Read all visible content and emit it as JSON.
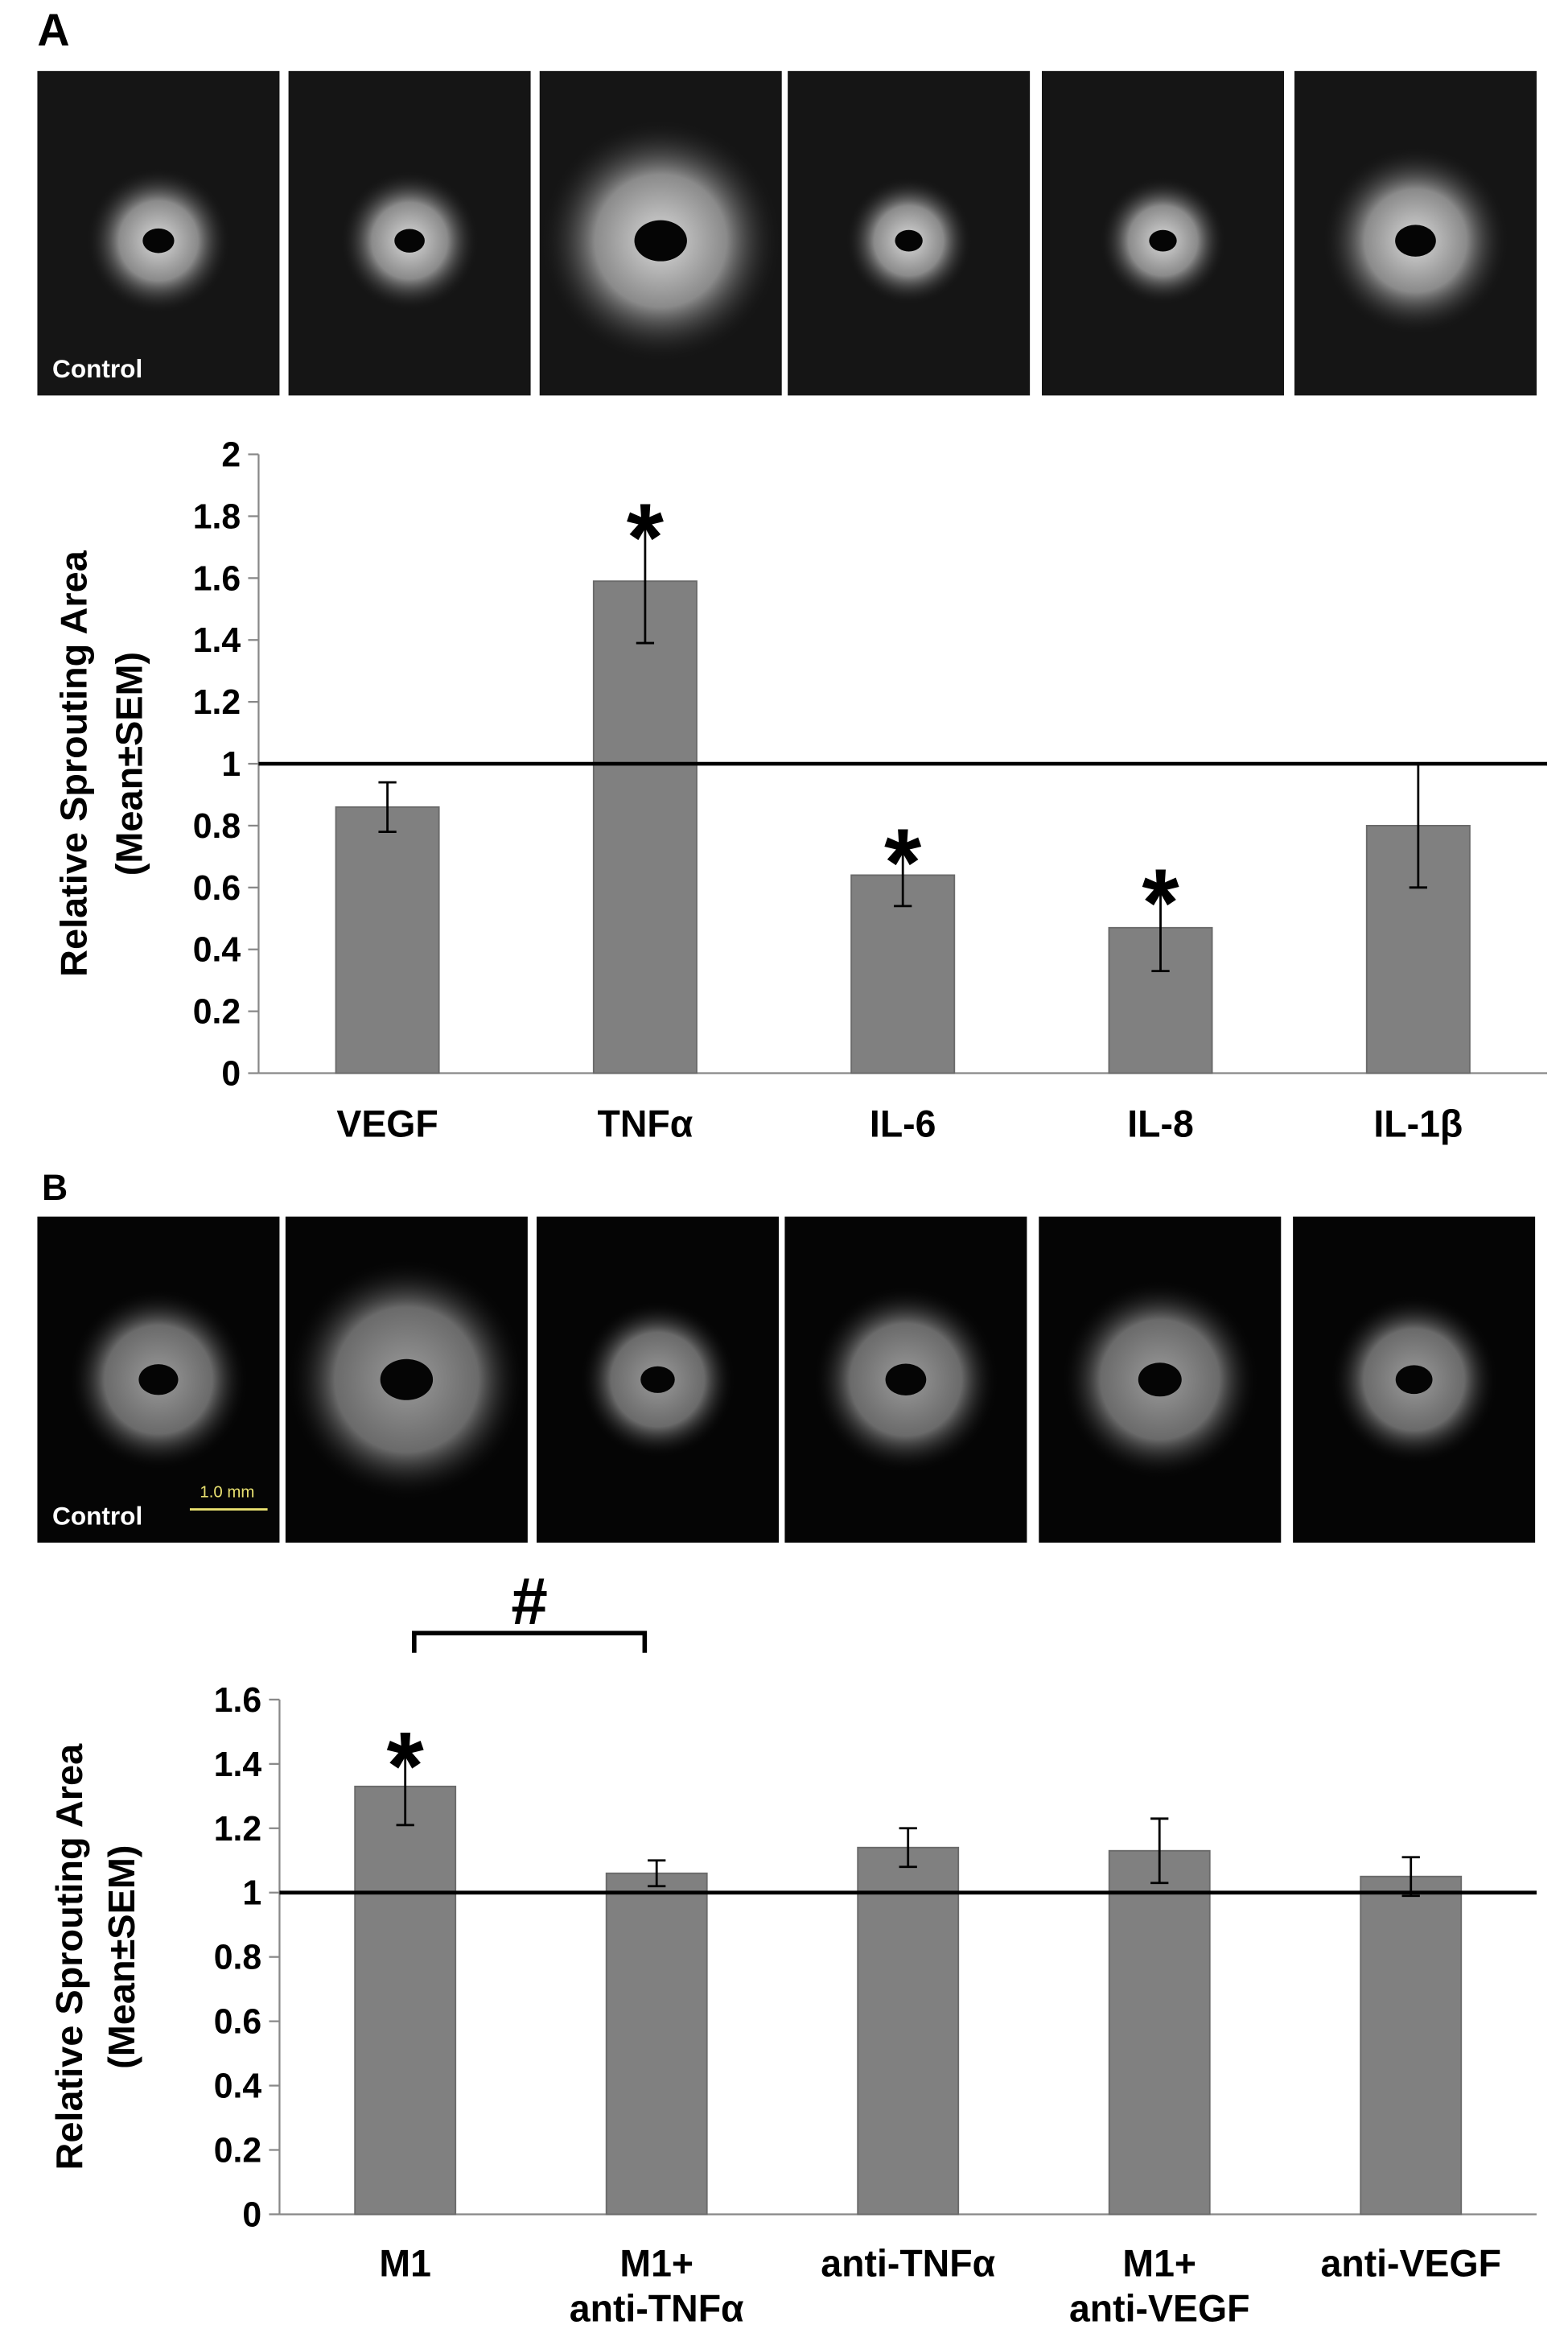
{
  "chart_data": [
    {
      "type": "bar",
      "panel": "A",
      "image_label": "Control",
      "ylabel": [
        "Relative Sprouting Area",
        "(Mean±SEM)"
      ],
      "categories": [
        "VEGF",
        "TNFα",
        "IL-6",
        "IL-8",
        "IL-1β"
      ],
      "values": [
        0.86,
        1.59,
        0.64,
        0.47,
        0.8
      ],
      "errors": [
        0.08,
        0.2,
        0.1,
        0.14,
        0.2
      ],
      "color": "#808080",
      "ylim": [
        0,
        2
      ],
      "yticks": [
        0,
        0.2,
        0.4,
        0.6,
        0.8,
        1,
        1.2,
        1.4,
        1.6,
        1.8,
        2
      ],
      "reference_line": 1,
      "annotations": [
        {
          "text": "*",
          "category": "TNFα"
        },
        {
          "text": "*",
          "category": "IL-6"
        },
        {
          "text": "*",
          "category": "IL-8"
        }
      ]
    },
    {
      "type": "bar",
      "panel": "B",
      "image_label": "Control",
      "scale_bar": "1.0 mm",
      "ylabel": [
        "Relative Sprouting Area",
        "(Mean±SEM)"
      ],
      "categories": [
        "M1",
        "M1+ anti-TNFα",
        "anti-TNFα",
        "M1+ anti-VEGF",
        "anti-VEGF"
      ],
      "values": [
        1.33,
        1.06,
        1.14,
        1.13,
        1.05
      ],
      "errors": [
        0.12,
        0.04,
        0.06,
        0.1,
        0.06
      ],
      "color": "#808080",
      "ylim": [
        0,
        1.6
      ],
      "yticks": [
        0,
        0.2,
        0.4,
        0.6,
        0.8,
        1,
        1.2,
        1.4,
        1.6
      ],
      "reference_line": 1,
      "annotations": [
        {
          "text": "*",
          "category": "M1"
        }
      ],
      "brackets": [
        {
          "text": "#",
          "between": [
            "M1",
            "M1+ anti-TNFα"
          ]
        }
      ]
    }
  ]
}
